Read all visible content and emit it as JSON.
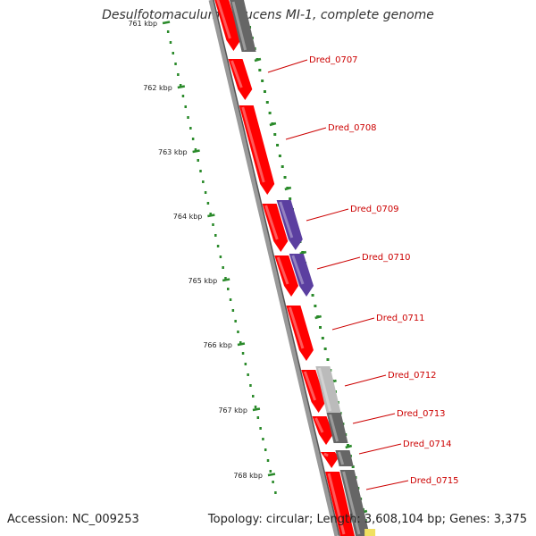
{
  "title": "Desulfotomaculum reducens MI-1, complete genome",
  "footer": {
    "accession": "Accession: NC_009253",
    "summary": "Topology: circular; Length: 3,608,104 bp; Genes: 3,375"
  },
  "colors": {
    "forward_cds": "#ff0000",
    "reverse_dark": "#666666",
    "reverse_light": "#bbbbbb",
    "reverse_purple": "#5b3fa0",
    "axis": "#888888",
    "gc_dots": "#2a8a2a",
    "label": "#cc0000"
  },
  "ticks": [
    {
      "label": "761 kbp",
      "kbp": 761
    },
    {
      "label": "762 kbp",
      "kbp": 762
    },
    {
      "label": "763 kbp",
      "kbp": 763
    },
    {
      "label": "764 kbp",
      "kbp": 764
    },
    {
      "label": "765 kbp",
      "kbp": 765
    },
    {
      "label": "766 kbp",
      "kbp": 766
    },
    {
      "label": "767 kbp",
      "kbp": 767
    },
    {
      "label": "768 kbp",
      "kbp": 768
    }
  ],
  "genes": [
    {
      "label": "Dred_0707"
    },
    {
      "label": "Dred_0708"
    },
    {
      "label": "Dred_0709"
    },
    {
      "label": "Dred_0710"
    },
    {
      "label": "Dred_0711"
    },
    {
      "label": "Dred_0712"
    },
    {
      "label": "Dred_0713"
    },
    {
      "label": "Dred_0714"
    },
    {
      "label": "Dred_0715"
    }
  ]
}
